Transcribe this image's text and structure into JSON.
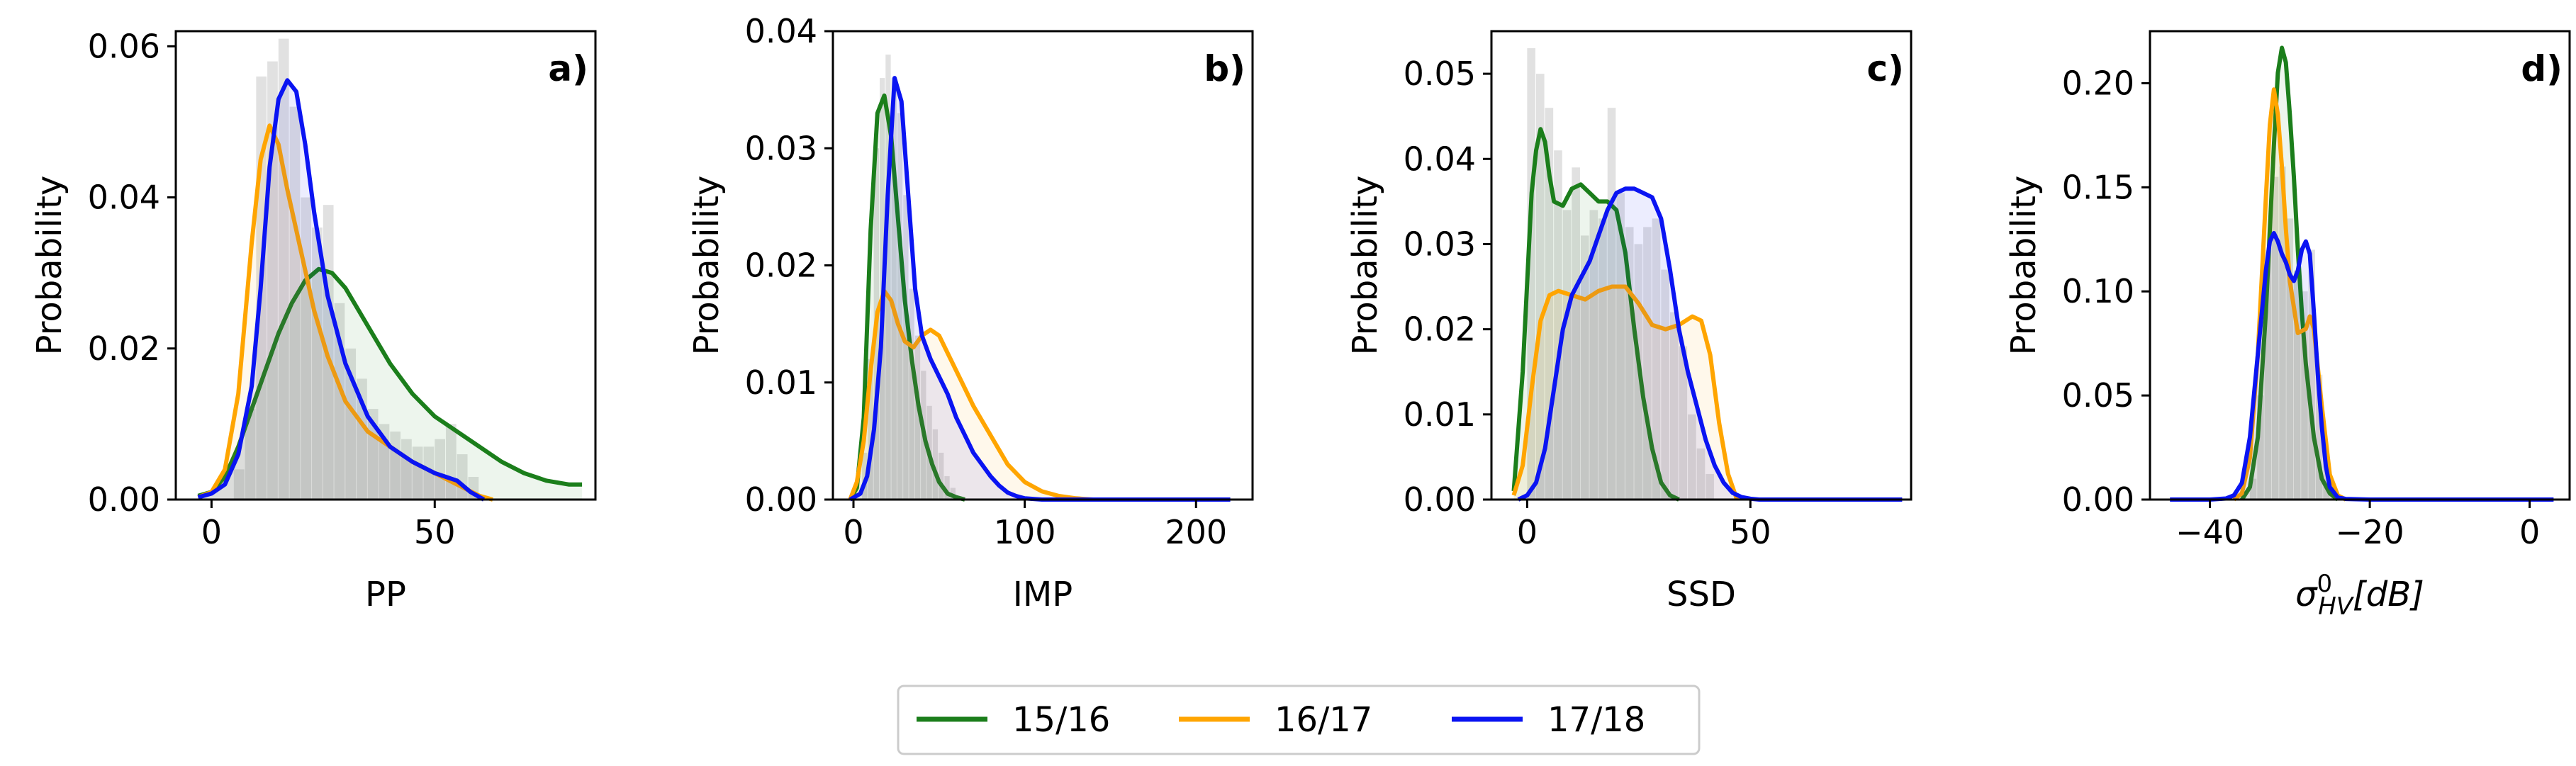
{
  "chart_data": [
    {
      "panel": "a)",
      "type": "line",
      "xlabel": "PP",
      "ylabel": "Probability",
      "xlim": [
        -8,
        86
      ],
      "ylim": [
        0,
        0.062
      ],
      "xticks": [
        {
          "v": 0,
          "t": "0"
        },
        {
          "v": 50,
          "t": "50"
        }
      ],
      "yticks": [
        {
          "v": 0,
          "t": "0.00"
        },
        {
          "v": 0.02,
          "t": "0.02"
        },
        {
          "v": 0.04,
          "t": "0.04"
        },
        {
          "v": 0.06,
          "t": "0.06"
        }
      ],
      "hist": {
        "x0": 5,
        "x1": 60,
        "bins": 22,
        "values": [
          0.004,
          0.012,
          0.056,
          0.058,
          0.061,
          0.052,
          0.04,
          0.036,
          0.039,
          0.026,
          0.02,
          0.016,
          0.012,
          0.01,
          0.009,
          0.008,
          0.007,
          0.007,
          0.008,
          0.01,
          0.006,
          0.003
        ]
      },
      "series": [
        {
          "name": "15/16",
          "x": [
            -3,
            0,
            3,
            6,
            9,
            12,
            15,
            18,
            21,
            24,
            27,
            30,
            33,
            36,
            40,
            45,
            50,
            55,
            60,
            65,
            70,
            75,
            80,
            83
          ],
          "y": [
            0.0005,
            0.001,
            0.003,
            0.007,
            0.012,
            0.017,
            0.022,
            0.026,
            0.029,
            0.0305,
            0.03,
            0.028,
            0.025,
            0.022,
            0.018,
            0.014,
            0.011,
            0.009,
            0.007,
            0.005,
            0.0035,
            0.0025,
            0.002,
            0.002
          ]
        },
        {
          "name": "16/17",
          "x": [
            -3,
            0,
            3,
            6,
            9,
            11,
            13,
            15,
            17,
            20,
            23,
            26,
            30,
            35,
            40,
            45,
            50,
            55,
            60,
            63
          ],
          "y": [
            0.0003,
            0.001,
            0.004,
            0.014,
            0.034,
            0.045,
            0.0495,
            0.047,
            0.041,
            0.033,
            0.025,
            0.019,
            0.013,
            0.009,
            0.007,
            0.005,
            0.0035,
            0.002,
            0.0005,
            0
          ]
        },
        {
          "name": "17/18",
          "x": [
            -3,
            0,
            3,
            6,
            9,
            11,
            13,
            15,
            17,
            19,
            21,
            23,
            26,
            30,
            35,
            40,
            45,
            50,
            55,
            58,
            61
          ],
          "y": [
            0.0003,
            0.0008,
            0.002,
            0.006,
            0.015,
            0.028,
            0.044,
            0.053,
            0.0555,
            0.054,
            0.047,
            0.038,
            0.027,
            0.018,
            0.011,
            0.007,
            0.005,
            0.0035,
            0.0025,
            0.001,
            0
          ]
        }
      ]
    },
    {
      "panel": "b)",
      "type": "line",
      "xlabel": "IMP",
      "ylabel": "Probability",
      "xlim": [
        -12,
        233
      ],
      "ylim": [
        0,
        0.04
      ],
      "xticks": [
        {
          "v": 0,
          "t": "0"
        },
        {
          "v": 100,
          "t": "100"
        },
        {
          "v": 200,
          "t": "200"
        }
      ],
      "yticks": [
        {
          "v": 0,
          "t": "0.00"
        },
        {
          "v": 0.01,
          "t": "0.01"
        },
        {
          "v": 0.02,
          "t": "0.02"
        },
        {
          "v": 0.03,
          "t": "0.03"
        },
        {
          "v": 0.04,
          "t": "0.04"
        }
      ],
      "hist": {
        "x0": 5,
        "x1": 60,
        "bins": 16,
        "values": [
          0.004,
          0.012,
          0.03,
          0.036,
          0.038,
          0.036,
          0.033,
          0.026,
          0.018,
          0.014,
          0.011,
          0.008,
          0.006,
          0.004,
          0.002,
          0.001
        ]
      },
      "series": [
        {
          "name": "15/16",
          "x": [
            -2,
            2,
            6,
            10,
            14,
            18,
            22,
            26,
            30,
            34,
            38,
            42,
            46,
            50,
            55,
            60,
            65
          ],
          "y": [
            0,
            0.001,
            0.007,
            0.023,
            0.033,
            0.0345,
            0.031,
            0.024,
            0.017,
            0.012,
            0.008,
            0.005,
            0.003,
            0.0015,
            0.0005,
            0.0002,
            0
          ]
        },
        {
          "name": "16/17",
          "x": [
            -2,
            2,
            6,
            10,
            14,
            18,
            22,
            26,
            30,
            35,
            40,
            45,
            50,
            55,
            60,
            65,
            70,
            80,
            90,
            100,
            110,
            120,
            130,
            140
          ],
          "y": [
            0,
            0.0015,
            0.005,
            0.011,
            0.016,
            0.0178,
            0.017,
            0.015,
            0.0135,
            0.013,
            0.014,
            0.0145,
            0.014,
            0.0125,
            0.011,
            0.0095,
            0.008,
            0.0055,
            0.003,
            0.0015,
            0.0007,
            0.0003,
            0.0001,
            0
          ]
        },
        {
          "name": "17/18",
          "x": [
            -2,
            4,
            8,
            12,
            16,
            20,
            24,
            28,
            32,
            36,
            40,
            45,
            50,
            55,
            60,
            65,
            70,
            75,
            80,
            85,
            90,
            95,
            100,
            110,
            130,
            150,
            170,
            190,
            210,
            220
          ],
          "y": [
            0,
            0.0005,
            0.002,
            0.006,
            0.013,
            0.026,
            0.036,
            0.034,
            0.026,
            0.018,
            0.014,
            0.012,
            0.0105,
            0.009,
            0.007,
            0.0055,
            0.004,
            0.003,
            0.002,
            0.0012,
            0.0006,
            0.0003,
            0.0001,
            0,
            0,
            0,
            0,
            0,
            0,
            0
          ]
        }
      ]
    },
    {
      "panel": "c)",
      "type": "line",
      "xlabel": "SSD",
      "ylabel": "Probability",
      "xlim": [
        -8,
        86
      ],
      "ylim": [
        0,
        0.055
      ],
      "xticks": [
        {
          "v": 0,
          "t": "0"
        },
        {
          "v": 50,
          "t": "50"
        }
      ],
      "yticks": [
        {
          "v": 0,
          "t": "0.00"
        },
        {
          "v": 0.01,
          "t": "0.01"
        },
        {
          "v": 0.02,
          "t": "0.02"
        },
        {
          "v": 0.03,
          "t": "0.03"
        },
        {
          "v": 0.04,
          "t": "0.04"
        },
        {
          "v": 0.05,
          "t": "0.05"
        }
      ],
      "hist": {
        "x0": 0,
        "x1": 42,
        "bins": 21,
        "values": [
          0.053,
          0.05,
          0.046,
          0.041,
          0.034,
          0.039,
          0.031,
          0.034,
          0.033,
          0.046,
          0.036,
          0.032,
          0.03,
          0.032,
          0.033,
          0.027,
          0.022,
          0.018,
          0.01,
          0.006,
          0.003
        ]
      },
      "series": [
        {
          "name": "15/16",
          "x": [
            -3,
            -1,
            1,
            2,
            3,
            4,
            5,
            6,
            8,
            10,
            12,
            14,
            16,
            18,
            20,
            22,
            24,
            26,
            28,
            30,
            32,
            34
          ],
          "y": [
            0.001,
            0.015,
            0.036,
            0.041,
            0.0435,
            0.042,
            0.038,
            0.035,
            0.0345,
            0.0365,
            0.037,
            0.036,
            0.035,
            0.035,
            0.034,
            0.029,
            0.02,
            0.012,
            0.006,
            0.002,
            0.0005,
            0
          ]
        },
        {
          "name": "16/17",
          "x": [
            -3,
            -1,
            1,
            3,
            5,
            7,
            10,
            13,
            16,
            19,
            22,
            25,
            28,
            31,
            34,
            37,
            39,
            41,
            43,
            45,
            47
          ],
          "y": [
            0.0005,
            0.004,
            0.013,
            0.021,
            0.024,
            0.0245,
            0.024,
            0.0235,
            0.0245,
            0.025,
            0.025,
            0.023,
            0.0205,
            0.02,
            0.0205,
            0.0215,
            0.021,
            0.017,
            0.009,
            0.003,
            0
          ]
        },
        {
          "name": "17/18",
          "x": [
            -2,
            0,
            2,
            4,
            6,
            8,
            10,
            12,
            14,
            16,
            18,
            20,
            22,
            24,
            26,
            28,
            30,
            32,
            34,
            36,
            38,
            40,
            42,
            44,
            46,
            48,
            50,
            52,
            60,
            70,
            80,
            84
          ],
          "y": [
            0,
            0.0005,
            0.002,
            0.006,
            0.013,
            0.02,
            0.024,
            0.026,
            0.028,
            0.031,
            0.034,
            0.036,
            0.0365,
            0.0365,
            0.036,
            0.0355,
            0.033,
            0.027,
            0.02,
            0.015,
            0.011,
            0.007,
            0.004,
            0.002,
            0.0008,
            0.0003,
            0.0001,
            0,
            0,
            0,
            0,
            0
          ]
        }
      ]
    },
    {
      "panel": "d)",
      "type": "line",
      "xlabel": "σ⁰HV [dB]",
      "ylabel": "Probability",
      "xlim": [
        -47.5,
        5
      ],
      "ylim": [
        0,
        0.225
      ],
      "xticks": [
        {
          "v": -40,
          "t": "−40"
        },
        {
          "v": -20,
          "t": "−20"
        },
        {
          "v": 0,
          "t": "0"
        }
      ],
      "yticks": [
        {
          "v": 0,
          "t": "0.00"
        },
        {
          "v": 0.05,
          "t": "0.05"
        },
        {
          "v": 0.1,
          "t": "0.10"
        },
        {
          "v": 0.15,
          "t": "0.15"
        },
        {
          "v": 0.2,
          "t": "0.20"
        }
      ],
      "hist": {
        "x0": -35,
        "x1": -24,
        "bins": 12,
        "values": [
          0.01,
          0.05,
          0.12,
          0.155,
          0.16,
          0.135,
          0.11,
          0.1,
          0.12,
          0.06,
          0.02,
          0.005
        ]
      },
      "series": [
        {
          "name": "15/16",
          "x": [
            -36,
            -35,
            -34,
            -33,
            -32,
            -31.5,
            -31,
            -30.5,
            -30,
            -29.5,
            -29,
            -28.5,
            -28,
            -27,
            -26,
            -25,
            -24
          ],
          "y": [
            0,
            0.006,
            0.03,
            0.09,
            0.17,
            0.205,
            0.217,
            0.21,
            0.185,
            0.155,
            0.12,
            0.09,
            0.065,
            0.03,
            0.01,
            0.003,
            0
          ]
        },
        {
          "name": "16/17",
          "x": [
            -37,
            -36,
            -35,
            -34,
            -33,
            -32.5,
            -32,
            -31.5,
            -31,
            -30.5,
            -30,
            -29,
            -28,
            -27.5,
            -27,
            -26,
            -25,
            -24,
            -23
          ],
          "y": [
            0,
            0.003,
            0.02,
            0.07,
            0.145,
            0.18,
            0.197,
            0.185,
            0.16,
            0.13,
            0.105,
            0.08,
            0.082,
            0.088,
            0.082,
            0.045,
            0.012,
            0.002,
            0
          ]
        },
        {
          "name": "17/18",
          "x": [
            -45,
            -40,
            -38,
            -37,
            -36,
            -35,
            -34,
            -33,
            -32.5,
            -32,
            -31.5,
            -31,
            -30.5,
            -30,
            -29.5,
            -29,
            -28.5,
            -28,
            -27.5,
            -27,
            -26.5,
            -26,
            -25.5,
            -25,
            -24,
            -23,
            -20,
            -10,
            0,
            3
          ],
          "y": [
            0,
            0,
            0.0005,
            0.002,
            0.008,
            0.03,
            0.07,
            0.11,
            0.124,
            0.128,
            0.124,
            0.118,
            0.114,
            0.108,
            0.105,
            0.11,
            0.12,
            0.124,
            0.118,
            0.09,
            0.06,
            0.035,
            0.016,
            0.006,
            0.001,
            0.0003,
            0,
            0,
            0,
            0
          ]
        }
      ]
    }
  ],
  "legend": [
    {
      "name": "15/16",
      "color": "#1b7e1b"
    },
    {
      "name": "16/17",
      "color": "#ffa500"
    },
    {
      "name": "17/18",
      "color": "#0a14f2"
    }
  ],
  "hist_color": "#c8c8c8"
}
